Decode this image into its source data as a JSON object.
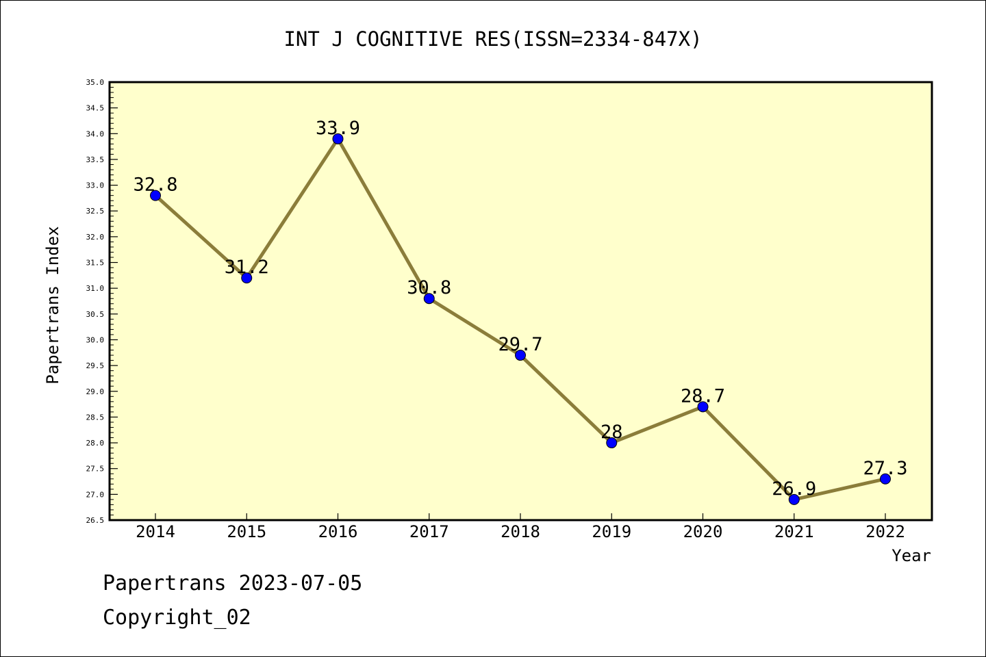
{
  "chart_data": {
    "type": "line",
    "title": "INT J COGNITIVE RES(ISSN=2334-847X)",
    "xlabel": "Year",
    "ylabel": "Papertrans Index",
    "categories": [
      "2014",
      "2015",
      "2016",
      "2017",
      "2018",
      "2019",
      "2020",
      "2021",
      "2022"
    ],
    "series": [
      {
        "values": [
          32.8,
          31.2,
          33.9,
          30.8,
          29.7,
          28.0,
          28.7,
          26.9,
          27.3
        ],
        "labels": [
          "32.8",
          "31.2",
          "33.9",
          "30.8",
          "29.7",
          "28",
          "28.7",
          "26.9",
          "27.3"
        ]
      }
    ],
    "ylim": [
      26.5,
      35.0
    ],
    "yticks": [
      "26.5",
      "27.0",
      "27.5",
      "28.0",
      "28.5",
      "29.0",
      "29.5",
      "30.0",
      "30.5",
      "31.0",
      "31.5",
      "32.0",
      "32.5",
      "33.0",
      "33.5",
      "34.0",
      "34.5",
      "35.0"
    ],
    "grid": false,
    "colors": {
      "plot_background": "#ffffcc",
      "line": "#8b7d3a",
      "marker": "#0000ff"
    }
  },
  "footer": {
    "line1": "Papertrans 2023-07-05",
    "line2": "Copyright_02"
  }
}
